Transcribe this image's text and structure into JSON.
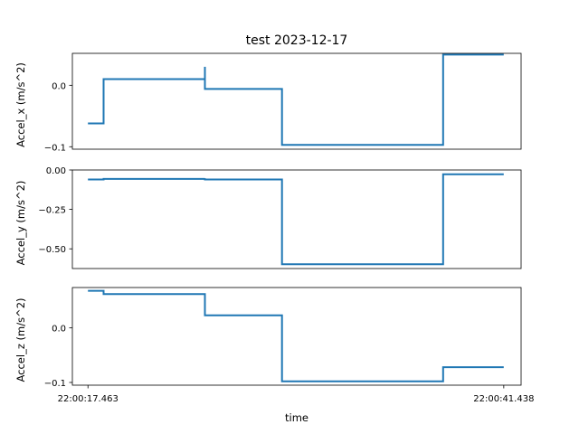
{
  "title": "test  2023-12-17",
  "colors": {
    "line": "#1f77b4",
    "axes": "#000000",
    "background": "#ffffff"
  },
  "chart_data": [
    {
      "type": "line",
      "subplot": 1,
      "ylabel": "Accel_x  (m/s^2)",
      "yticks": [
        0.0,
        -0.1
      ],
      "ytick_labels": [
        "0.0",
        "−0.1"
      ],
      "ylim": [
        -0.104,
        0.052
      ],
      "xlim": [
        -0.9,
        25.0
      ],
      "show_xticks": false,
      "series": [
        {
          "x": [
            0,
            0.9,
            0.9,
            6.75,
            6.75,
            6.75,
            11.2,
            11.2,
            20.5,
            20.5,
            24.0
          ],
          "y": [
            -0.062,
            -0.062,
            0.01,
            0.01,
            0.03,
            -0.006,
            -0.006,
            -0.097,
            -0.097,
            0.05,
            0.05
          ]
        }
      ]
    },
    {
      "type": "line",
      "subplot": 2,
      "ylabel": "Accel_y  (m/s^2)",
      "yticks": [
        0.0,
        -0.25,
        -0.5
      ],
      "ytick_labels": [
        "0.00",
        "−0.25",
        "−0.50"
      ],
      "ylim": [
        -0.625,
        0.0
      ],
      "xlim": [
        -0.9,
        25.0
      ],
      "show_xticks": false,
      "series": [
        {
          "x": [
            0,
            0.9,
            0.9,
            6.75,
            6.75,
            6.75,
            11.2,
            11.2,
            20.5,
            20.5,
            24.0
          ],
          "y": [
            -0.06,
            -0.06,
            -0.057,
            -0.057,
            -0.052,
            -0.06,
            -0.06,
            -0.598,
            -0.598,
            -0.027,
            -0.027
          ]
        }
      ]
    },
    {
      "type": "line",
      "subplot": 3,
      "ylabel": "Accel_z  (m/s^2)",
      "yticks": [
        0.0,
        -0.1
      ],
      "ytick_labels": [
        "0.0",
        "−0.1"
      ],
      "ylim": [
        -0.105,
        0.074
      ],
      "xlim": [
        -0.9,
        25.0
      ],
      "show_xticks": true,
      "xticks": [
        0,
        24.0
      ],
      "xtick_labels": [
        "22:00:17.463",
        "22:00:41.438"
      ],
      "xlabel": "time",
      "series": [
        {
          "x": [
            0,
            0.9,
            0.9,
            6.75,
            6.75,
            11.2,
            11.2,
            20.5,
            20.5,
            24.0
          ],
          "y": [
            0.068,
            0.068,
            0.062,
            0.062,
            0.023,
            0.023,
            -0.098,
            -0.098,
            -0.072,
            -0.072
          ]
        }
      ]
    }
  ]
}
